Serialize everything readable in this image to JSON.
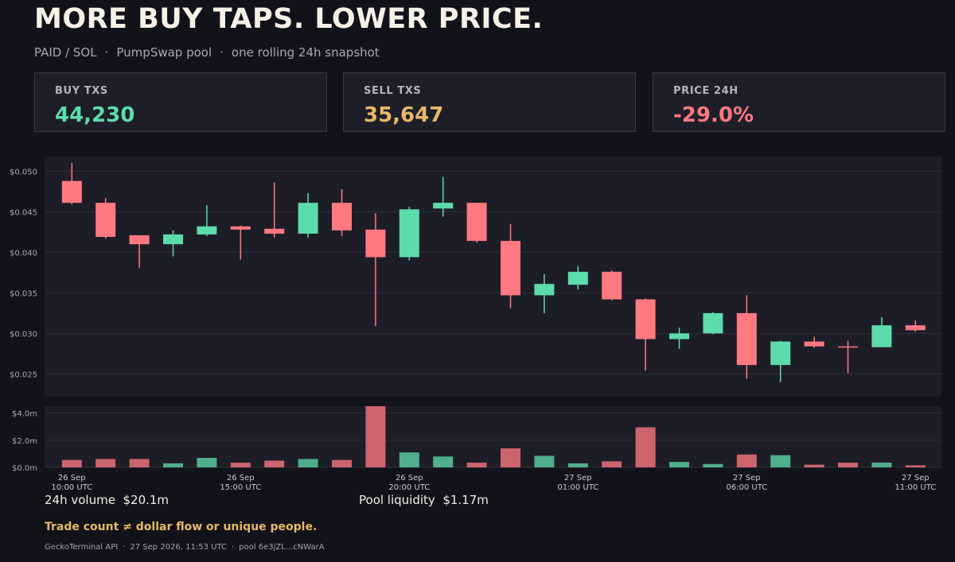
{
  "header": {
    "title": "MORE BUY TAPS. LOWER PRICE.",
    "subtitle_parts": [
      "PAID / SOL",
      "PumpSwap pool",
      "one rolling 24h snapshot"
    ]
  },
  "cards": [
    {
      "label": "BUY TXS",
      "value": "44,230",
      "color": "#5ddcab"
    },
    {
      "label": "SELL TXS",
      "value": "35,647",
      "color": "#e7b866"
    },
    {
      "label": "PRICE 24H",
      "value": "-29.0%",
      "color": "#ff7a80"
    }
  ],
  "stats": {
    "volume_label": "24h volume",
    "volume_value": "$20.1m",
    "liquidity_label": "Pool liquidity",
    "liquidity_value": "$1.17m"
  },
  "note": "Trade count ≠ dollar flow or unique people.",
  "source_parts": [
    "GeckoTerminal API",
    "27 Sep 2026, 11:53 UTC",
    "pool 6e3jZL...cNWarA"
  ],
  "colors": {
    "up": "#5ddcab",
    "down": "#ff7a80",
    "up_volume": "#4fae8b",
    "down_volume": "#cc646c"
  },
  "chart_data": {
    "type": "candlestick",
    "price_axis": {
      "ylim": [
        0.0222,
        0.0518
      ],
      "ticks": [
        0.025,
        0.03,
        0.035,
        0.04,
        0.045,
        0.05
      ],
      "tick_labels": [
        "$0.025",
        "$0.030",
        "$0.035",
        "$0.040",
        "$0.045",
        "$0.050"
      ]
    },
    "volume_axis": {
      "ylim": [
        0,
        4.5
      ],
      "ticks": [
        0,
        2,
        4
      ],
      "tick_labels": [
        "$0.0m",
        "$2.0m",
        "$4.0m"
      ]
    },
    "x_ticks": [
      {
        "index": 0,
        "date": "26 Sep",
        "time": "10:00 UTC"
      },
      {
        "index": 5,
        "date": "26 Sep",
        "time": "15:00 UTC"
      },
      {
        "index": 10,
        "date": "26 Sep",
        "time": "20:00 UTC"
      },
      {
        "index": 15,
        "date": "27 Sep",
        "time": "01:00 UTC"
      },
      {
        "index": 20,
        "date": "27 Sep",
        "time": "06:00 UTC"
      },
      {
        "index": 25,
        "date": "27 Sep",
        "time": "11:00 UTC"
      }
    ],
    "candles": [
      {
        "open": 0.0488,
        "high": 0.051,
        "low": 0.0459,
        "close": 0.0461,
        "volume": 0.55
      },
      {
        "open": 0.0461,
        "high": 0.0467,
        "low": 0.0417,
        "close": 0.0419,
        "volume": 0.62
      },
      {
        "open": 0.0421,
        "high": 0.0421,
        "low": 0.0381,
        "close": 0.041,
        "volume": 0.62
      },
      {
        "open": 0.041,
        "high": 0.0427,
        "low": 0.0395,
        "close": 0.0422,
        "volume": 0.3
      },
      {
        "open": 0.0422,
        "high": 0.0458,
        "low": 0.042,
        "close": 0.0432,
        "volume": 0.7
      },
      {
        "open": 0.0432,
        "high": 0.0433,
        "low": 0.0391,
        "close": 0.0428,
        "volume": 0.35
      },
      {
        "open": 0.0429,
        "high": 0.0486,
        "low": 0.0418,
        "close": 0.0423,
        "volume": 0.5
      },
      {
        "open": 0.0423,
        "high": 0.0473,
        "low": 0.0418,
        "close": 0.0461,
        "volume": 0.62
      },
      {
        "open": 0.0461,
        "high": 0.0478,
        "low": 0.042,
        "close": 0.0427,
        "volume": 0.55
      },
      {
        "open": 0.0428,
        "high": 0.0448,
        "low": 0.0309,
        "close": 0.0394,
        "volume": 6.0
      },
      {
        "open": 0.0394,
        "high": 0.0456,
        "low": 0.039,
        "close": 0.0453,
        "volume": 1.1
      },
      {
        "open": 0.0454,
        "high": 0.0493,
        "low": 0.0444,
        "close": 0.0461,
        "volume": 0.8
      },
      {
        "open": 0.0461,
        "high": 0.0461,
        "low": 0.0412,
        "close": 0.0414,
        "volume": 0.35
      },
      {
        "open": 0.0414,
        "high": 0.0435,
        "low": 0.0331,
        "close": 0.0347,
        "volume": 1.4
      },
      {
        "open": 0.0347,
        "high": 0.0373,
        "low": 0.0325,
        "close": 0.0361,
        "volume": 0.85
      },
      {
        "open": 0.036,
        "high": 0.0383,
        "low": 0.0354,
        "close": 0.0376,
        "volume": 0.3
      },
      {
        "open": 0.0376,
        "high": 0.0378,
        "low": 0.0341,
        "close": 0.0342,
        "volume": 0.45
      },
      {
        "open": 0.0342,
        "high": 0.0343,
        "low": 0.0254,
        "close": 0.0293,
        "volume": 2.95
      },
      {
        "open": 0.0293,
        "high": 0.0307,
        "low": 0.0281,
        "close": 0.03,
        "volume": 0.4
      },
      {
        "open": 0.03,
        "high": 0.0326,
        "low": 0.0299,
        "close": 0.0325,
        "volume": 0.25
      },
      {
        "open": 0.0325,
        "high": 0.0347,
        "low": 0.0244,
        "close": 0.0261,
        "volume": 0.95
      },
      {
        "open": 0.0261,
        "high": 0.0291,
        "low": 0.024,
        "close": 0.029,
        "volume": 0.9
      },
      {
        "open": 0.029,
        "high": 0.0296,
        "low": 0.0282,
        "close": 0.0284,
        "volume": 0.2
      },
      {
        "open": 0.0284,
        "high": 0.0291,
        "low": 0.0251,
        "close": 0.0283,
        "volume": 0.35
      },
      {
        "open": 0.0283,
        "high": 0.032,
        "low": 0.0283,
        "close": 0.031,
        "volume": 0.35
      },
      {
        "open": 0.031,
        "high": 0.0316,
        "low": 0.0302,
        "close": 0.0304,
        "volume": 0.15
      }
    ]
  }
}
